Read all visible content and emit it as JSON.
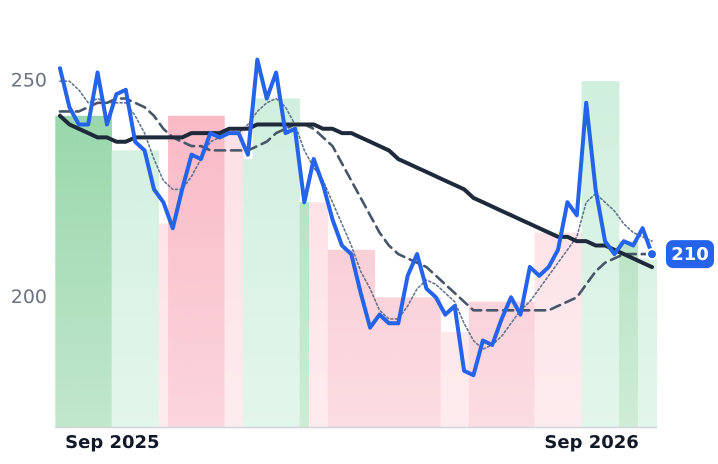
{
  "chart_data": {
    "type": "line",
    "categories": [
      null,
      null,
      null,
      null,
      null,
      null,
      "Sep 2025",
      null,
      null,
      null,
      null,
      null,
      null,
      null,
      null,
      null,
      null,
      null,
      null,
      null,
      null,
      null,
      null,
      null,
      null,
      null,
      null,
      null,
      null,
      null,
      null,
      null,
      null,
      null,
      null,
      null,
      null,
      null,
      null,
      null,
      null,
      null,
      null,
      null,
      null,
      null,
      null,
      null,
      null,
      null,
      null,
      null,
      null,
      null,
      null,
      null,
      null,
      "Sep 2026",
      null,
      null,
      null,
      null,
      null,
      null
    ],
    "ylim": [
      170,
      260
    ],
    "yticks": [
      200,
      250
    ],
    "grid": false,
    "background": {
      "values": [
        242,
        242,
        242,
        242,
        242,
        242,
        234,
        234,
        234,
        234,
        234,
        217,
        242,
        242,
        242,
        242,
        242,
        242,
        239,
        239,
        232,
        246,
        246,
        246,
        246,
        246,
        222,
        222,
        222,
        211,
        211,
        211,
        211,
        211,
        200,
        200,
        200,
        200,
        200,
        200,
        200,
        192,
        192,
        192,
        199,
        199,
        199,
        199,
        199,
        199,
        199,
        215,
        215,
        215,
        215,
        215,
        250,
        250,
        250,
        250,
        213,
        213,
        209,
        209
      ],
      "colors": [
        "#8fd3a3",
        "#8fd3a3",
        "#8fd3a3",
        "#8fd3a3",
        "#8fd3a3",
        "#8fd3a3",
        "#cdeedb",
        "#cdeedb",
        "#cdeedb",
        "#cdeedb",
        "#cdeedb",
        "#fcdce2",
        "#f8b3c0",
        "#f8b3c0",
        "#f8b3c0",
        "#f8b3c0",
        "#f8b3c0",
        "#f8b3c0",
        "#fcdce2",
        "#fcdce2",
        "#cdeedb",
        "#cdeedb",
        "#cdeedb",
        "#cdeedb",
        "#cdeedb",
        "#cdeedb",
        "#a6dcb5",
        "#fcdce2",
        "#fcdce2",
        "#f8c0cb",
        "#f8c0cb",
        "#f8c0cb",
        "#f8c0cb",
        "#f8c0cb",
        "#f8c0cb",
        "#f8c0cb",
        "#f8c0cb",
        "#f8c0cb",
        "#f8c0cb",
        "#f8c0cb",
        "#f8c0cb",
        "#fcdce2",
        "#fcdce2",
        "#fcdce2",
        "#f8c0cb",
        "#f8c0cb",
        "#f8c0cb",
        "#f8c0cb",
        "#f8c0cb",
        "#f8c0cb",
        "#f8c0cb",
        "#fcdce2",
        "#fcdce2",
        "#fcdce2",
        "#fcdce2",
        "#fcdce2",
        "#cdeedb",
        "#cdeedb",
        "#cdeedb",
        "#cdeedb",
        "#a6dcb5",
        "#a6dcb5",
        "#cdeedb",
        "#cdeedb"
      ]
    },
    "series": [
      {
        "color": "#64748b",
        "style": "dotted",
        "width": 1.6,
        "values": [
          250,
          250,
          248,
          245,
          246,
          245,
          245,
          245,
          242,
          238,
          232,
          227,
          225,
          225,
          228,
          232,
          236,
          237,
          238,
          238,
          240,
          243,
          245,
          246,
          244,
          240,
          234,
          230,
          227,
          222,
          217,
          212,
          206,
          202,
          197,
          195,
          195,
          198,
          202,
          204,
          203,
          201,
          199,
          194,
          190,
          188,
          189,
          191,
          194,
          197,
          199,
          202,
          205,
          208,
          211,
          214,
          222,
          224,
          222,
          220,
          217,
          215,
          214,
          213
        ]
      },
      {
        "color": "#475569",
        "style": "dashed",
        "width": 2.6,
        "values": [
          243,
          243,
          243,
          244,
          245,
          245,
          246,
          246,
          245,
          244,
          242,
          239,
          237,
          236,
          235,
          235,
          234,
          234,
          234,
          234,
          234,
          235,
          236,
          238,
          239,
          240,
          240,
          239,
          237,
          235,
          231,
          227,
          223,
          219,
          215,
          212,
          210,
          209,
          208,
          207,
          205,
          203,
          201,
          199,
          197,
          197,
          197,
          197,
          197,
          197,
          197,
          197,
          197,
          198,
          199,
          200,
          203,
          206,
          208,
          209,
          210,
          210,
          210,
          210
        ]
      },
      {
        "color": "#1e293b",
        "style": "solid",
        "width": 4,
        "values": [
          242,
          240,
          239,
          238,
          237,
          237,
          236,
          236,
          237,
          237,
          237,
          237,
          237,
          237,
          238,
          238,
          238,
          238,
          239,
          239,
          239,
          240,
          240,
          240,
          240,
          240,
          240,
          240,
          239,
          239,
          238,
          238,
          237,
          236,
          235,
          234,
          232,
          231,
          230,
          229,
          228,
          227,
          226,
          225,
          223,
          222,
          221,
          220,
          219,
          218,
          217,
          216,
          215,
          214,
          214,
          213,
          213,
          212,
          212,
          211,
          210,
          209,
          208,
          207
        ]
      },
      {
        "color": "#2563eb",
        "style": "solid",
        "width": 4,
        "values": [
          253,
          244,
          240,
          240,
          252,
          240,
          247,
          248,
          236,
          234,
          225,
          222,
          216,
          225,
          233,
          232,
          238,
          237,
          238,
          238,
          233,
          255,
          246,
          252,
          238,
          239,
          222,
          232,
          226,
          218,
          212,
          210,
          201,
          193,
          196,
          194,
          194,
          205,
          210,
          202,
          200,
          196,
          198,
          183,
          182,
          190,
          189,
          195,
          200,
          196,
          207,
          205,
          207,
          211,
          222,
          219,
          245,
          225,
          213,
          210,
          213,
          212,
          216,
          210
        ]
      }
    ]
  }
}
